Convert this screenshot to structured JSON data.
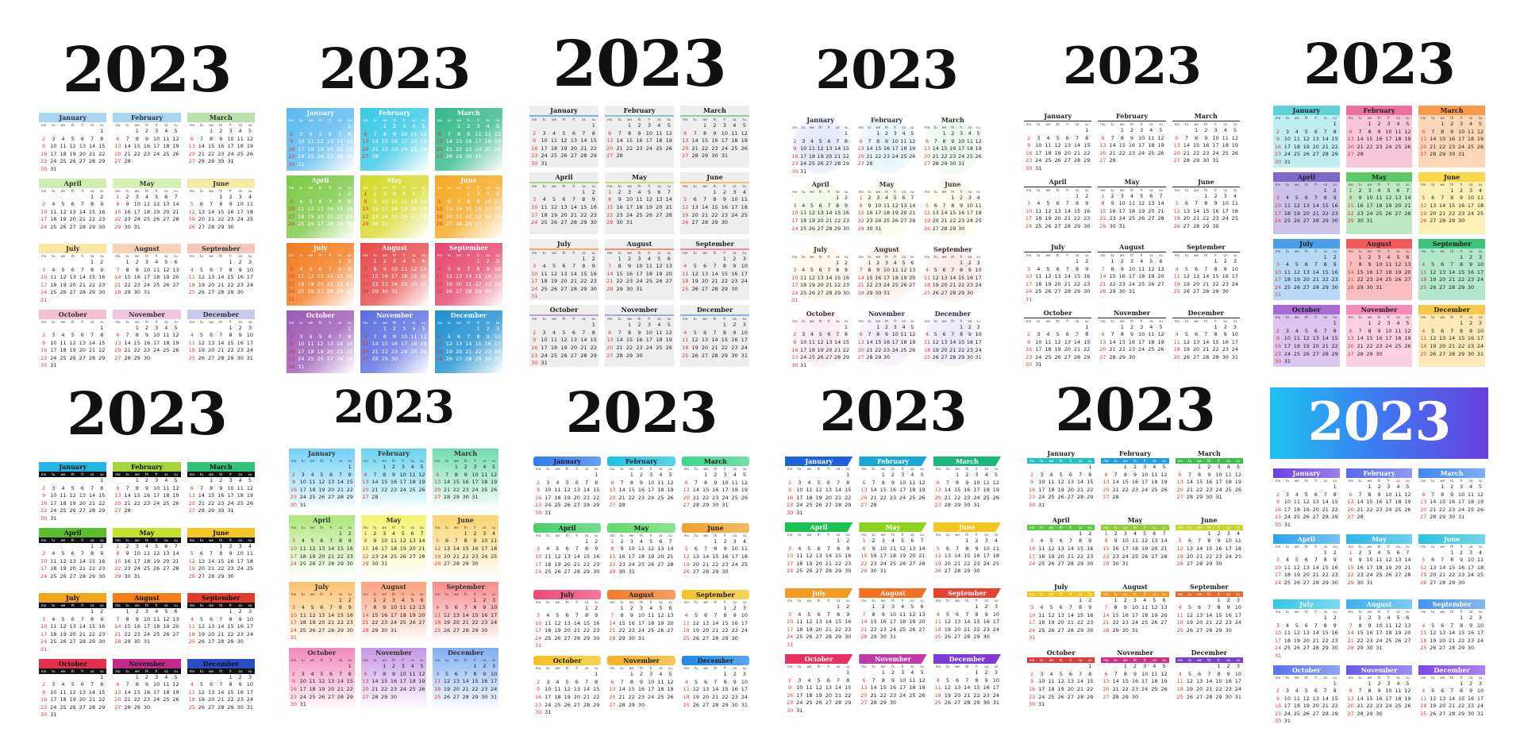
{
  "year": "2023",
  "weekday_labels": [
    "mo",
    "tu",
    "we",
    "th",
    "fr",
    "sa",
    "su"
  ],
  "months": [
    {
      "name": "January",
      "start": 6,
      "len": 31
    },
    {
      "name": "February",
      "start": 2,
      "len": 28
    },
    {
      "name": "March",
      "start": 2,
      "len": 31
    },
    {
      "name": "April",
      "start": 5,
      "len": 30
    },
    {
      "name": "May",
      "start": 0,
      "len": 31
    },
    {
      "name": "June",
      "start": 3,
      "len": 30
    },
    {
      "name": "July",
      "start": 5,
      "len": 31
    },
    {
      "name": "August",
      "start": 1,
      "len": 31
    },
    {
      "name": "September",
      "start": 4,
      "len": 30
    },
    {
      "name": "October",
      "start": 6,
      "len": 31
    },
    {
      "name": "November",
      "start": 2,
      "len": 30
    },
    {
      "name": "December",
      "start": 4,
      "len": 31
    }
  ],
  "variants": [
    {
      "style": "pastel-header",
      "palette": [
        "#a9d4f2",
        "#a9d4f2",
        "#b8e0a8",
        "#cdeeb0",
        "#d7f0b5",
        "#f7e9a8",
        "#f9e6a3",
        "#f8d2b8",
        "#f6c7b8",
        "#f4bfd0",
        "#efc6df",
        "#c9c8ef"
      ]
    },
    {
      "style": "gradient-block",
      "palette": [
        "#5ab8f0",
        "#39c8e6",
        "#35b88a",
        "#7ac943",
        "#d6d928",
        "#f6a821",
        "#f27a1c",
        "#e64a4a",
        "#e5466e",
        "#9b59b6",
        "#5b6ee1",
        "#1d8fd1"
      ]
    },
    {
      "style": "gray-panel",
      "palette": [
        "#74b7e6",
        "#7fc8c8",
        "#8ccf9a",
        "#a5d67c",
        "#d3d96a",
        "#f0c26b",
        "#f3a76b",
        "#ef8f82",
        "#ec8aa6",
        "#c79ad6",
        "#9ea9e4",
        "#88b1e8"
      ]
    },
    {
      "style": "watercolor-circle",
      "palette": [
        "#9aa7e6",
        "#a6d0e8",
        "#b5e1c0",
        "#cfe6b2",
        "#e6efb6",
        "#f7eeb2",
        "#f9e0a8",
        "#f5c9b0",
        "#f1b7b2",
        "#eeb5d6",
        "#d6b9ea",
        "#b9b8ec"
      ]
    },
    {
      "style": "plain-line",
      "palette": [
        "#222222",
        "#222222",
        "#222222",
        "#222222",
        "#222222",
        "#222222",
        "#222222",
        "#222222",
        "#222222",
        "#222222",
        "#222222",
        "#222222"
      ]
    },
    {
      "style": "bright-block",
      "palette": [
        "#5fd1d9",
        "#f06fa2",
        "#f79a4a",
        "#7f67c9",
        "#5ec86a",
        "#f9d94a",
        "#4a9fe6",
        "#ef5a5a",
        "#3cc47a",
        "#a66bd3",
        "#f48ab7",
        "#f7c84b"
      ]
    },
    {
      "style": "black-bar",
      "palette": [
        "#22b5e6",
        "#a5d43a",
        "#2fc27b",
        "#5bbe2a",
        "#c6e02a",
        "#f6c71f",
        "#f0a51b",
        "#f57f17",
        "#e53b2a",
        "#e5304f",
        "#c12a8c",
        "#2a4cc7"
      ]
    },
    {
      "style": "fade-gradient",
      "palette": [
        "#4fc3f7",
        "#44c8e8",
        "#4cd39a",
        "#99e15a",
        "#f0f04a",
        "#f9c846",
        "#f9b24a",
        "#f98a5a",
        "#f76d6d",
        "#f06aa9",
        "#b87be0",
        "#5d9af0"
      ]
    },
    {
      "style": "brush-header",
      "palette": [
        "#2f7bf0",
        "#1ec3e0",
        "#3dd68c",
        "#45d06a",
        "#5fdb6a",
        "#f0a02a",
        "#f04878",
        "#f47a2a",
        "#f2c323",
        "#f5c21c",
        "#f6b123",
        "#1e88e5"
      ]
    },
    {
      "style": "slanted-tab",
      "palette": [
        "#1f62e0",
        "#17a7d6",
        "#19b87a",
        "#19c24e",
        "#8bd221",
        "#f2c51f",
        "#f29a1f",
        "#f2701f",
        "#e9412f",
        "#e9305e",
        "#c23aa8",
        "#7d3ad6"
      ]
    },
    {
      "style": "colored-dow",
      "palette": [
        "#1ec3c3",
        "#1e9de0",
        "#3dc04b",
        "#5fc940",
        "#8ed12f",
        "#c4d92a",
        "#f2c31f",
        "#f09a1f",
        "#e96a2a",
        "#e03b3b",
        "#d02f83",
        "#7a3fd0"
      ]
    },
    {
      "style": "banner",
      "palette": [
        "#6a3fe0",
        "#5868f0",
        "#3d86f2",
        "#2aa3f0",
        "#27b7ea",
        "#28c3e0",
        "#35c6ea",
        "#3ab2ef",
        "#4692f0",
        "#5674ef",
        "#6a57ec",
        "#7c47e8"
      ]
    }
  ]
}
